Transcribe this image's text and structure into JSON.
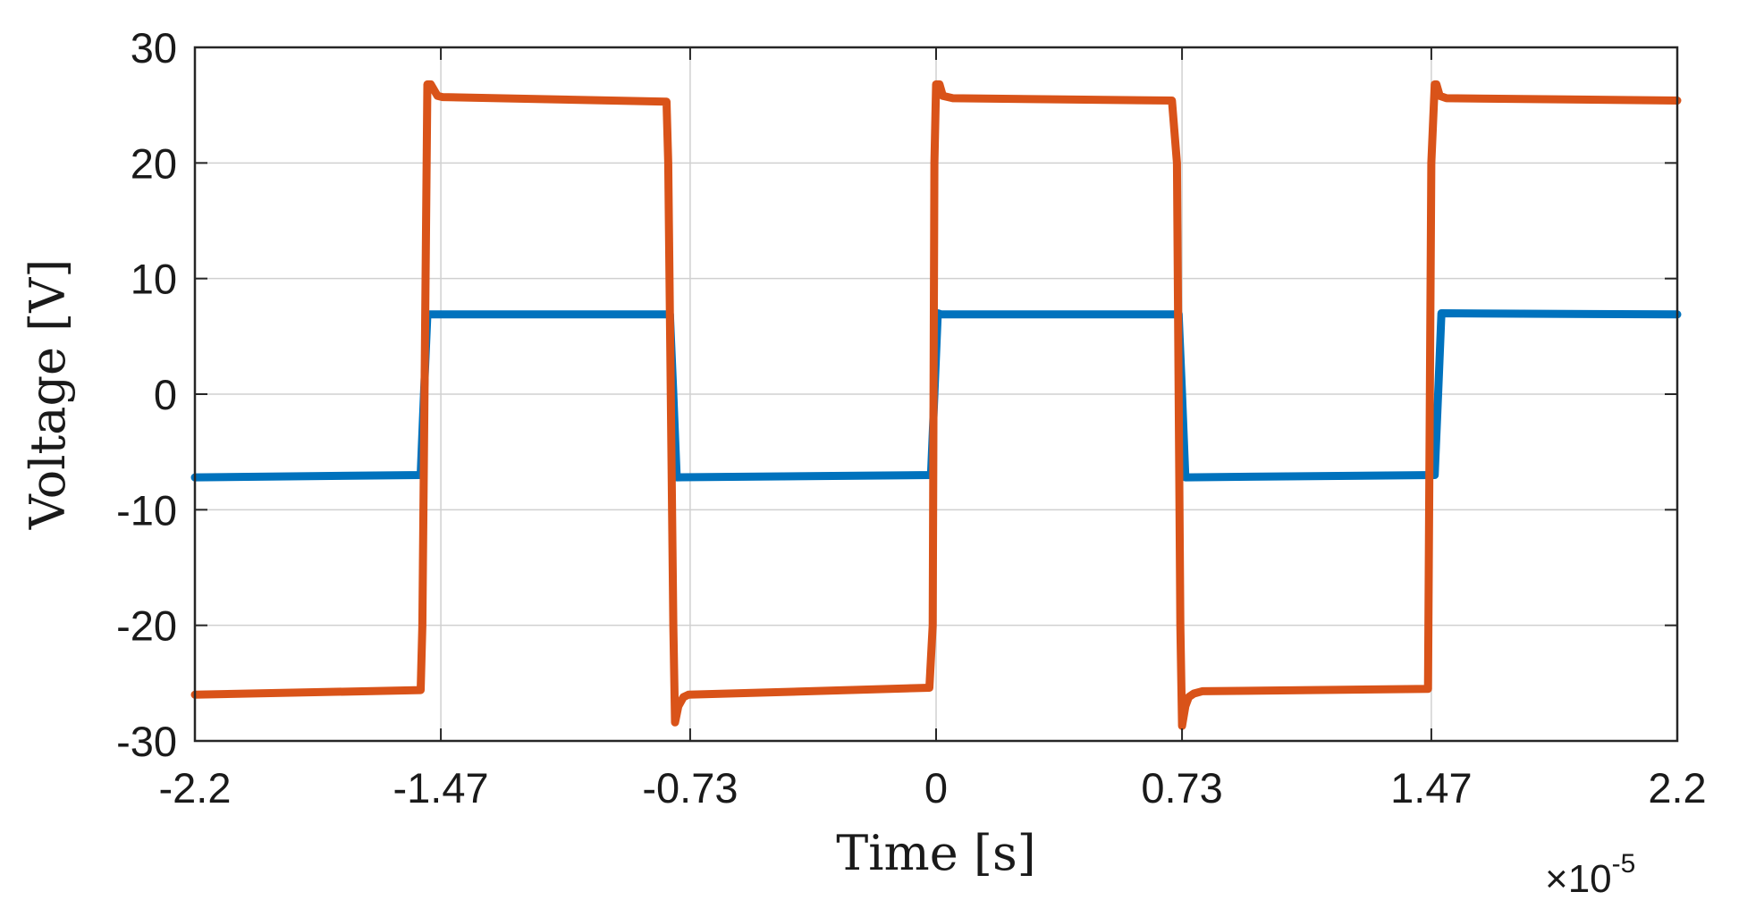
{
  "chart_data": {
    "type": "line",
    "xlabel": "Time [s]",
    "ylabel": "Voltage [V]",
    "x_multiplier": "×10",
    "x_exponent": "-5",
    "xlim": [
      -2.2,
      2.2
    ],
    "ylim": [
      -30,
      30
    ],
    "xticks": [
      -2.2,
      -1.47,
      -0.73,
      0,
      0.73,
      1.47,
      2.2
    ],
    "xtick_labels": [
      "-2.2",
      "-1.47",
      "-0.73",
      "0",
      "0.73",
      "1.47",
      "2.2"
    ],
    "yticks": [
      30,
      20,
      10,
      0,
      -10,
      -20,
      -30
    ],
    "ytick_labels": [
      "30",
      "20",
      "10",
      "0",
      "-10",
      "-20",
      "-30"
    ],
    "grid": true,
    "series": [
      {
        "color": "#0072BD",
        "x": [
          -2.2,
          -1.53,
          -1.52,
          -1.51,
          -0.79,
          -0.78,
          -0.77,
          -0.015,
          -0.005,
          0.005,
          0.015,
          0.72,
          0.73,
          0.74,
          1.48,
          1.49,
          1.5,
          2.2
        ],
        "y": [
          -7.2,
          -7.0,
          0.0,
          6.9,
          6.9,
          0.0,
          -7.2,
          -7.0,
          0.0,
          7.0,
          6.9,
          6.9,
          0.0,
          -7.2,
          -7.0,
          0.0,
          7.0,
          6.9
        ]
      },
      {
        "color": "#D95319",
        "x": [
          -2.2,
          -1.53,
          -1.525,
          -1.51,
          -1.5,
          -1.48,
          -1.465,
          -0.8,
          -0.795,
          -0.78,
          -0.775,
          -0.765,
          -0.75,
          -0.735,
          -0.02,
          -0.01,
          -0.005,
          0.0,
          0.01,
          0.02,
          0.05,
          0.7,
          0.715,
          0.725,
          0.73,
          0.74,
          0.75,
          0.765,
          0.79,
          1.46,
          1.47,
          1.48,
          1.485,
          1.495,
          1.515,
          2.2
        ],
        "y": [
          -26.0,
          -25.6,
          -20.0,
          26.8,
          26.8,
          25.8,
          25.7,
          25.3,
          20.0,
          -20.0,
          -28.4,
          -27.0,
          -26.2,
          -26.0,
          -25.4,
          -20.0,
          20.0,
          26.8,
          26.8,
          25.8,
          25.6,
          25.4,
          20.0,
          -20.0,
          -28.7,
          -27.0,
          -26.2,
          -25.9,
          -25.7,
          -25.5,
          20.0,
          26.8,
          26.8,
          25.8,
          25.6,
          25.4
        ]
      }
    ]
  }
}
